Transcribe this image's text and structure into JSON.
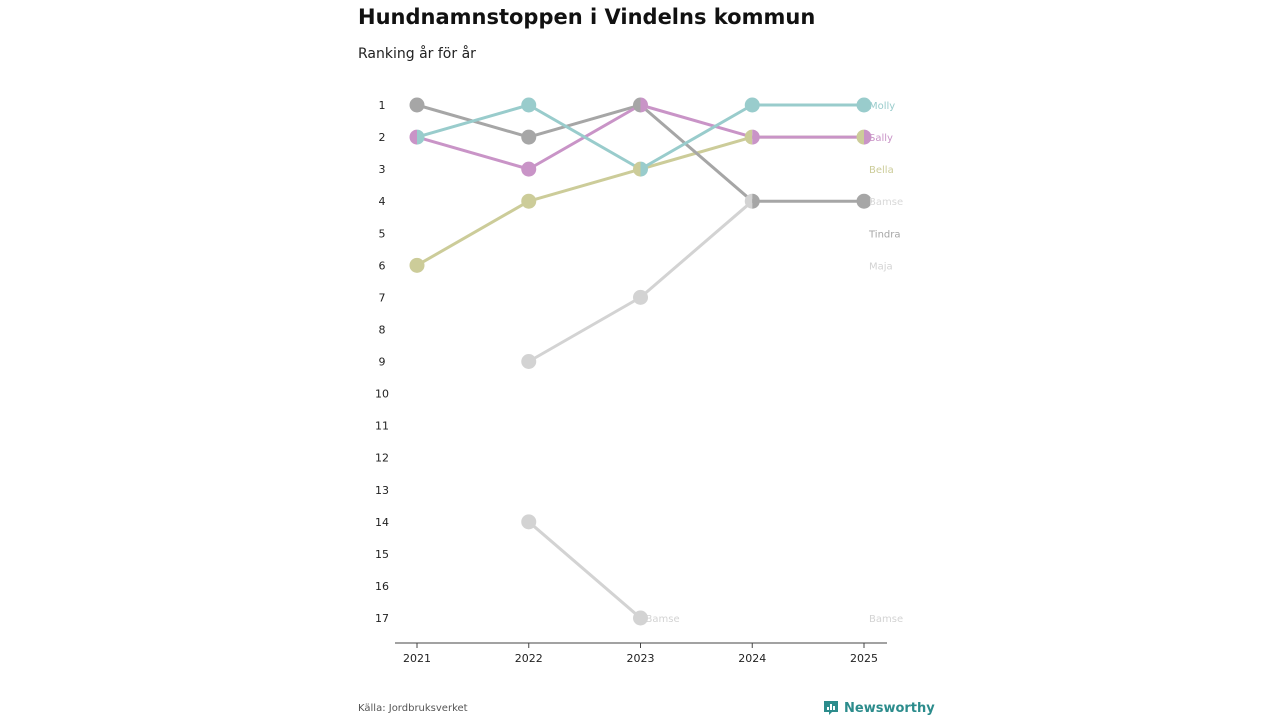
{
  "header": {
    "title": "Hundnamnstoppen i Vindelns kommun",
    "subtitle": "Ranking år för år"
  },
  "footer": {
    "source": "Källa: Jordbruksverket",
    "brand": "Newsworthy",
    "brand_logo_icon": "newsworthy-bar-chart-icon"
  },
  "chart_data": {
    "type": "line",
    "title": "Hundnamnstoppen i Vindelns kommun",
    "subtitle": "Ranking år för år",
    "xlabel": "",
    "ylabel": "",
    "categories": [
      "2021",
      "2022",
      "2023",
      "2024",
      "2025"
    ],
    "y_ticks": [
      1,
      2,
      3,
      4,
      5,
      6,
      7,
      8,
      9,
      10,
      11,
      12,
      13,
      14,
      15,
      16,
      17
    ],
    "ylim": [
      17,
      1
    ],
    "y_inverted": true,
    "grid": false,
    "legend": "end-labels-right",
    "series": [
      {
        "name": "Maja",
        "color": "#d3d3d3",
        "values": [
          null,
          9,
          7,
          4,
          null
        ],
        "end_label_rank": 6
      },
      {
        "name": "Bamse",
        "color": "#d3d3d3",
        "values": [
          null,
          14,
          17,
          null,
          null
        ],
        "end_label_rank": 17
      },
      {
        "name": "Bella",
        "color": "#cccc99",
        "values": [
          6,
          4,
          3,
          2,
          2
        ],
        "end_label_rank": 3
      },
      {
        "name": "Tindra",
        "color": "#a6a6a6",
        "values": [
          1,
          2,
          1,
          4,
          4
        ],
        "end_label_rank": 5
      },
      {
        "name": "Sally",
        "color": "#c994c7",
        "values": [
          2,
          3,
          1,
          2,
          2
        ],
        "end_label_rank": 2
      },
      {
        "name": "Molly",
        "color": "#99cccc",
        "values": [
          2,
          1,
          3,
          1,
          1
        ],
        "end_label_rank": 1
      }
    ],
    "annotations": [
      {
        "text": "Bamse",
        "x": "2025",
        "y": 4,
        "color": "#d8d8d8"
      },
      {
        "text": "Bamse",
        "x": "2023",
        "y": 17,
        "color": "#d3d3d3"
      }
    ],
    "tie_color": "#6b6b6e"
  }
}
